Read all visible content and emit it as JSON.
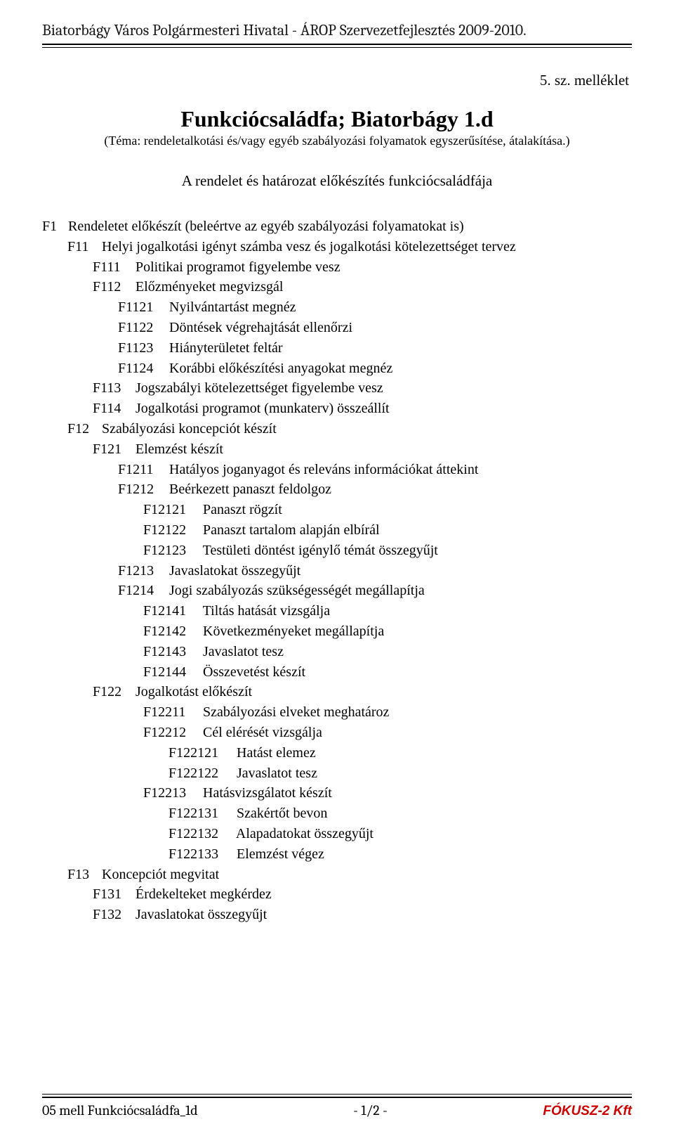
{
  "header": {
    "text": "Biatorbágy Város Polgármesteri Hivatal - ÁROP Szervezetfejlesztés 2009-2010."
  },
  "attachment": "5. sz. melléklet",
  "title": "Funkciócsaládfa; Biatorbágy 1.d",
  "subtitle": "(Téma: rendeletalkotási és/vagy egyéb szabályozási folyamatok egyszerűsítése, átalakítása.)",
  "section_heading": "A rendelet és határozat előkészítés funkciócsaládfája",
  "rows": [
    {
      "pad": 0,
      "codeW": 0,
      "code": "F1",
      "text": "Rendeletet előkészít (beleértve az egyéb szabályozási folyamatokat is)"
    },
    {
      "pad": 1,
      "codeW": 1,
      "code": "F11",
      "text": "Helyi jogalkotási igényt számba vesz és jogalkotási kötelezettséget tervez"
    },
    {
      "pad": 2,
      "codeW": 2,
      "code": "F111",
      "text": "Politikai programot figyelembe vesz"
    },
    {
      "pad": 2,
      "codeW": 2,
      "code": "F112",
      "text": "Előzményeket megvizsgál"
    },
    {
      "pad": 3,
      "codeW": 3,
      "code": "F1121",
      "text": "Nyilvántartást megnéz"
    },
    {
      "pad": 3,
      "codeW": 3,
      "code": "F1122",
      "text": "Döntések végrehajtását ellenőrzi"
    },
    {
      "pad": 3,
      "codeW": 3,
      "code": "F1123",
      "text": "Hiányterületet feltár"
    },
    {
      "pad": 3,
      "codeW": 3,
      "code": "F1124",
      "text": "Korábbi előkészítési anyagokat megnéz"
    },
    {
      "pad": 2,
      "codeW": 2,
      "code": "F113",
      "text": "Jogszabályi kötelezettséget figyelembe vesz"
    },
    {
      "pad": 2,
      "codeW": 2,
      "code": "F114",
      "text": "Jogalkotási programot (munkaterv) összeállít"
    },
    {
      "pad": 1,
      "codeW": 1,
      "code": "F12",
      "text": "Szabályozási koncepciót készít"
    },
    {
      "pad": 2,
      "codeW": 2,
      "code": "F121",
      "text": "Elemzést készít"
    },
    {
      "pad": 3,
      "codeW": 3,
      "code": "F1211",
      "text": "Hatályos joganyagot és releváns információkat áttekint"
    },
    {
      "pad": 3,
      "codeW": 3,
      "code": "F1212",
      "text": "Beérkezett panaszt feldolgoz"
    },
    {
      "pad": 4,
      "codeW": 4,
      "code": "F12121",
      "text": "Panaszt rögzít"
    },
    {
      "pad": 4,
      "codeW": 4,
      "code": "F12122",
      "text": "Panaszt tartalom alapján elbírál"
    },
    {
      "pad": 4,
      "codeW": 4,
      "code": "F12123",
      "text": "Testületi döntést igénylő témát összegyűjt"
    },
    {
      "pad": 3,
      "codeW": 3,
      "code": "F1213",
      "text": "Javaslatokat összegyűjt"
    },
    {
      "pad": 3,
      "codeW": 3,
      "code": "F1214",
      "text": "Jogi szabályozás szükségességét megállapítja"
    },
    {
      "pad": 4,
      "codeW": 4,
      "code": "F12141",
      "text": "Tiltás hatását vizsgálja"
    },
    {
      "pad": 4,
      "codeW": 4,
      "code": "F12142",
      "text": "Következményeket megállapítja"
    },
    {
      "pad": 4,
      "codeW": 4,
      "code": "F12143",
      "text": "Javaslatot tesz"
    },
    {
      "pad": 4,
      "codeW": 4,
      "code": "F12144",
      "text": "Összevetést készít"
    },
    {
      "pad": 2,
      "codeW": 2,
      "code": "F122",
      "text": "Jogalkotást előkészít"
    },
    {
      "pad": 4,
      "codeW": 4,
      "code": "F12211",
      "text": "Szabályozási elveket meghatároz"
    },
    {
      "pad": 4,
      "codeW": 4,
      "code": "F12212",
      "text": "Cél elérését vizsgálja"
    },
    {
      "pad": 5,
      "codeW": 5,
      "code": "F122121",
      "text": "Hatást elemez"
    },
    {
      "pad": 5,
      "codeW": 5,
      "code": "F122122",
      "text": "Javaslatot tesz"
    },
    {
      "pad": 4,
      "codeW": 4,
      "code": "F12213",
      "text": "Hatásvizsgálatot készít"
    },
    {
      "pad": 5,
      "codeW": 5,
      "code": "F122131",
      "text": "Szakértőt bevon"
    },
    {
      "pad": 5,
      "codeW": 5,
      "code": "F122132",
      "text": "Alapadatokat összegyűjt"
    },
    {
      "pad": 5,
      "codeW": 5,
      "code": "F122133",
      "text": "Elemzést végez"
    },
    {
      "pad": 1,
      "codeW": 1,
      "code": "F13",
      "text": "Koncepciót megvitat"
    },
    {
      "pad": 2,
      "codeW": 2,
      "code": "F131",
      "text": "Érdekelteket megkérdez"
    },
    {
      "pad": 2,
      "codeW": 2,
      "code": "F132",
      "text": "Javaslatokat összegyűjt"
    }
  ],
  "footer": {
    "left": "05 mell Funkciócsaládfa_1d",
    "center": "- 1/2 -",
    "right": "FÓKUSZ-2 Kft"
  }
}
